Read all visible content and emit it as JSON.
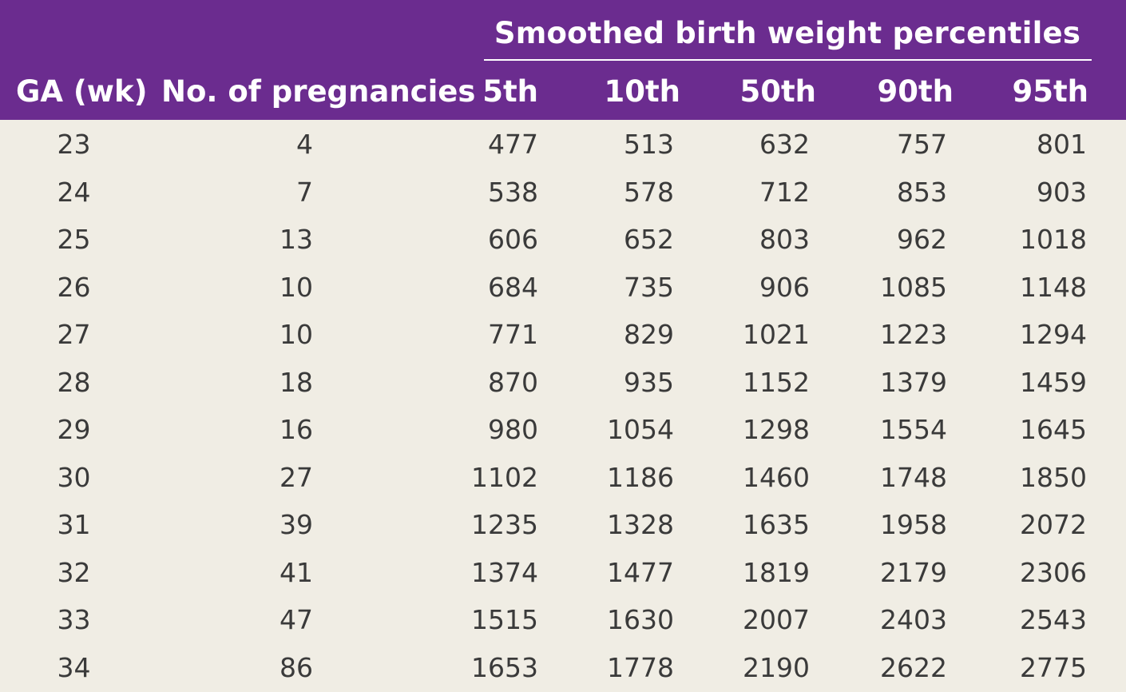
{
  "table": {
    "group_header": "Smoothed birth weight percentiles",
    "columns": {
      "ga": "GA (wk)",
      "pregnancies": "No. of pregnancies",
      "p5": "5th",
      "p10": "10th",
      "p50": "50th",
      "p90": "90th",
      "p95": "95th"
    },
    "rows": [
      {
        "ga": "23",
        "n": "4",
        "p5": "477",
        "p10": "513",
        "p50": "632",
        "p90": "757",
        "p95": "801"
      },
      {
        "ga": "24",
        "n": "7",
        "p5": "538",
        "p10": "578",
        "p50": "712",
        "p90": "853",
        "p95": "903"
      },
      {
        "ga": "25",
        "n": "13",
        "p5": "606",
        "p10": "652",
        "p50": "803",
        "p90": "962",
        "p95": "1018"
      },
      {
        "ga": "26",
        "n": "10",
        "p5": "684",
        "p10": "735",
        "p50": "906",
        "p90": "1085",
        "p95": "1148"
      },
      {
        "ga": "27",
        "n": "10",
        "p5": "771",
        "p10": "829",
        "p50": "1021",
        "p90": "1223",
        "p95": "1294"
      },
      {
        "ga": "28",
        "n": "18",
        "p5": "870",
        "p10": "935",
        "p50": "1152",
        "p90": "1379",
        "p95": "1459"
      },
      {
        "ga": "29",
        "n": "16",
        "p5": "980",
        "p10": "1054",
        "p50": "1298",
        "p90": "1554",
        "p95": "1645"
      },
      {
        "ga": "30",
        "n": "27",
        "p5": "1102",
        "p10": "1186",
        "p50": "1460",
        "p90": "1748",
        "p95": "1850"
      },
      {
        "ga": "31",
        "n": "39",
        "p5": "1235",
        "p10": "1328",
        "p50": "1635",
        "p90": "1958",
        "p95": "2072"
      },
      {
        "ga": "32",
        "n": "41",
        "p5": "1374",
        "p10": "1477",
        "p50": "1819",
        "p90": "2179",
        "p95": "2306"
      },
      {
        "ga": "33",
        "n": "47",
        "p5": "1515",
        "p10": "1630",
        "p50": "2007",
        "p90": "2403",
        "p95": "2543"
      },
      {
        "ga": "34",
        "n": "86",
        "p5": "1653",
        "p10": "1778",
        "p50": "2190",
        "p90": "2622",
        "p95": "2775"
      }
    ]
  },
  "colors": {
    "header_bg": "#6b2c8f",
    "header_text": "#ffffff",
    "body_bg": "#f0ede4",
    "body_text": "#3a3a3a"
  }
}
